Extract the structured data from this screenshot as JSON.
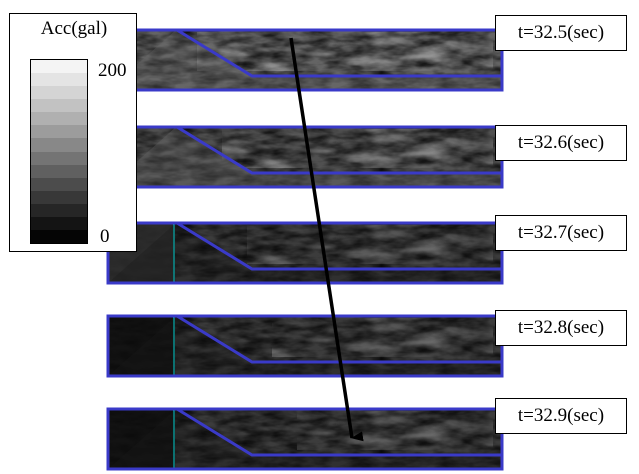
{
  "legend": {
    "title": "Acc(gal)",
    "max_label": "200",
    "min_label": "0",
    "colors": [
      "#f4f4f4",
      "#e4e4e4",
      "#d4d4d4",
      "#c2c2c2",
      "#b0b0b0",
      "#9c9c9c",
      "#888888",
      "#747474",
      "#606060",
      "#4c4c4c",
      "#383838",
      "#262626",
      "#141414",
      "#050505"
    ]
  },
  "snapshots": [
    {
      "time_label": "t=32.5(sec)"
    },
    {
      "time_label": "t=32.6(sec)"
    },
    {
      "time_label": "t=32.7(sec)"
    },
    {
      "time_label": "t=32.8(sec)"
    },
    {
      "time_label": "t=32.9(sec)"
    }
  ],
  "colors": {
    "outline": "#3a3ac8",
    "wall_line": "#00d0d0",
    "arrow": "#000000"
  }
}
